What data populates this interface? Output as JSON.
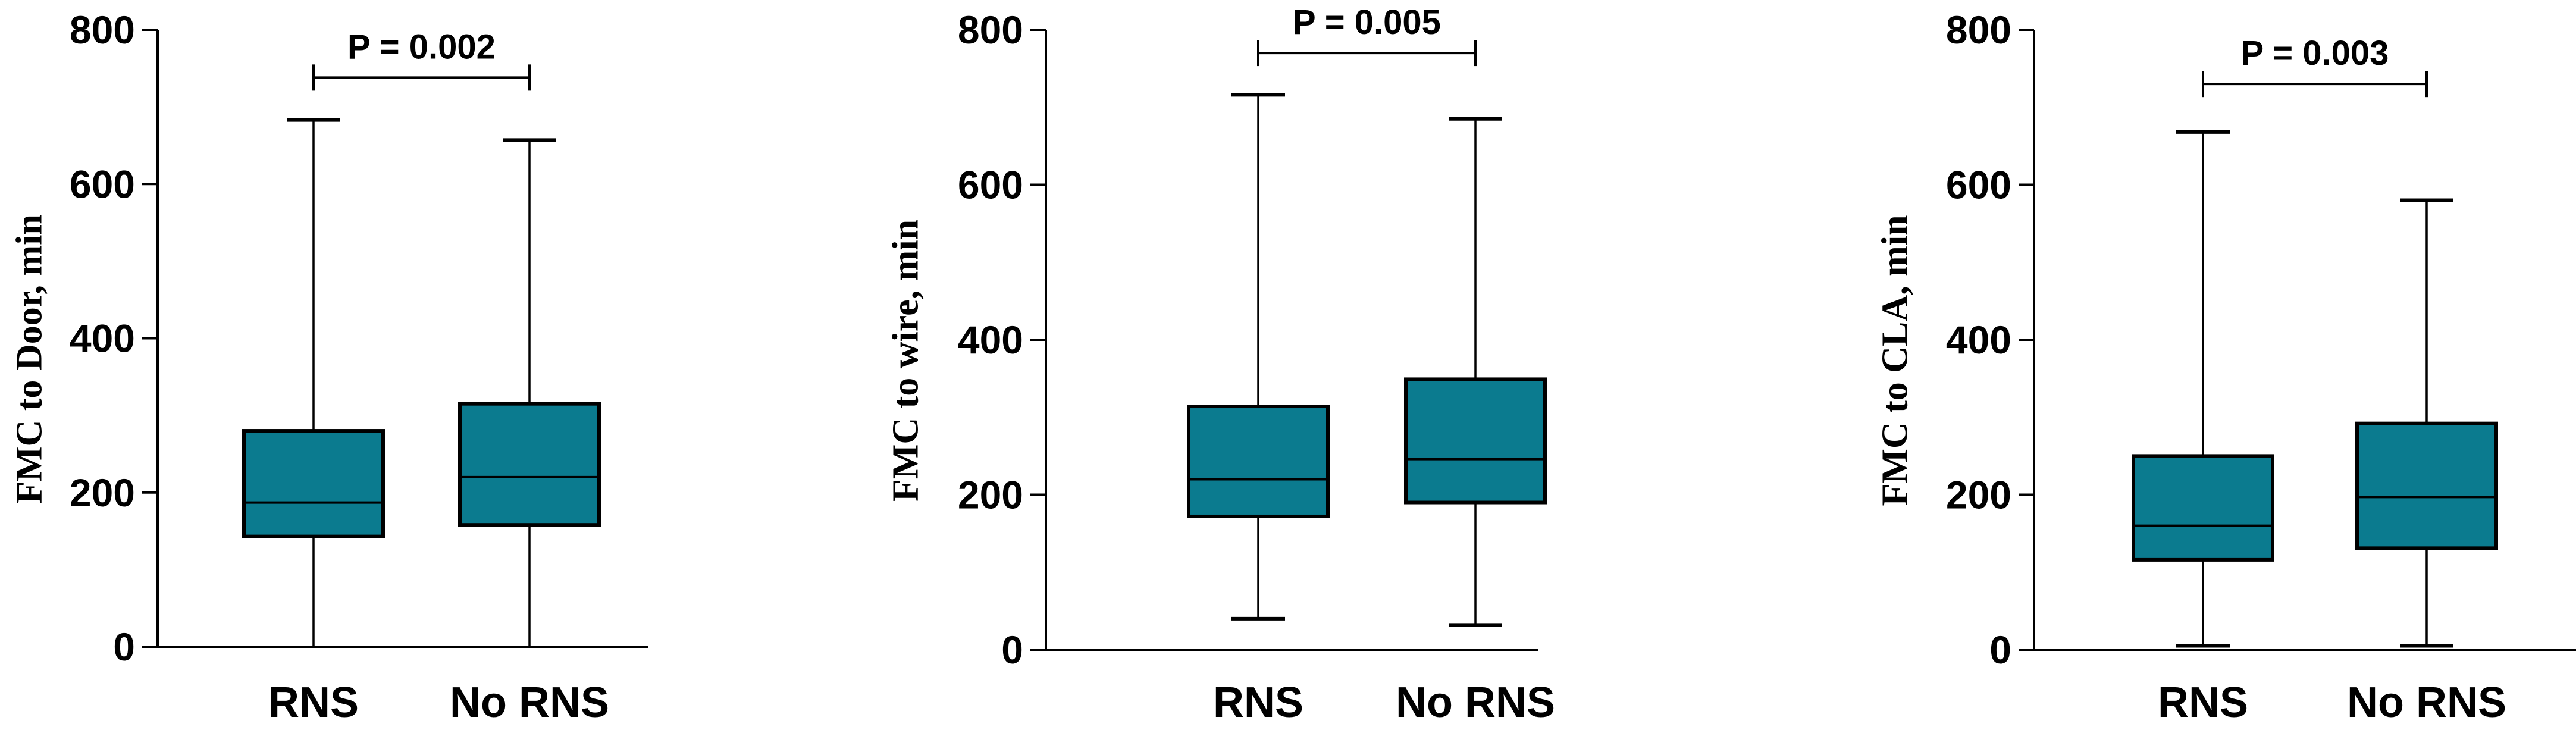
{
  "colors": {
    "box_fill": "#0b7b8f",
    "stroke": "#000000",
    "background": "#ffffff"
  },
  "chart_data": [
    {
      "type": "box",
      "title": "",
      "xlabel": "",
      "ylabel": "FMC to Door, min",
      "ylim": [
        0,
        800
      ],
      "yticks": [
        0,
        200,
        400,
        600,
        800
      ],
      "categories": [
        "RNS",
        "No RNS"
      ],
      "boxes": [
        {
          "category": "RNS",
          "min": 0,
          "q1": 143,
          "median": 187,
          "q3": 280,
          "max": 683
        },
        {
          "category": "No RNS",
          "min": 0,
          "q1": 158,
          "median": 220,
          "q3": 315,
          "max": 657
        }
      ],
      "comparison": {
        "label": "P = 0.002",
        "y": 738
      },
      "grid": false
    },
    {
      "type": "box",
      "title": "",
      "xlabel": "",
      "ylabel": "FMC to wire, min",
      "ylim": [
        0,
        800
      ],
      "yticks": [
        0,
        200,
        400,
        600,
        800
      ],
      "categories": [
        "RNS",
        "No RNS"
      ],
      "boxes": [
        {
          "category": "RNS",
          "min": 40,
          "q1": 172,
          "median": 220,
          "q3": 314,
          "max": 716
        },
        {
          "category": "No RNS",
          "min": 32,
          "q1": 190,
          "median": 246,
          "q3": 349,
          "max": 685
        }
      ],
      "comparison": {
        "label": "P = 0.005",
        "y": 770
      },
      "grid": false
    },
    {
      "type": "box",
      "title": "",
      "xlabel": "",
      "ylabel": "FMC to CLA, min",
      "ylim": [
        0,
        800
      ],
      "yticks": [
        0,
        200,
        400,
        600,
        800
      ],
      "categories": [
        "RNS",
        "No RNS"
      ],
      "boxes": [
        {
          "category": "RNS",
          "min": 5,
          "q1": 116,
          "median": 160,
          "q3": 250,
          "max": 668
        },
        {
          "category": "No RNS",
          "min": 5,
          "q1": 131,
          "median": 197,
          "q3": 292,
          "max": 580
        }
      ],
      "comparison": {
        "label": "P = 0.003",
        "y": 730
      },
      "grid": false
    }
  ]
}
